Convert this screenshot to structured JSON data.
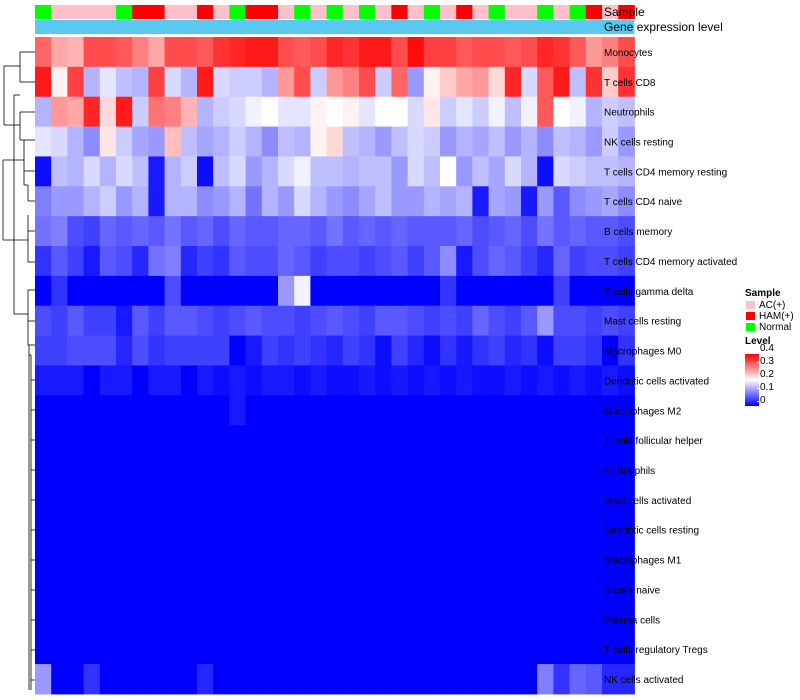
{
  "chart_data": {
    "type": "heatmap",
    "annotation_rows": [
      "Sample",
      "Gene expression level"
    ],
    "gene_expression_bar_color": "#5bc8ef",
    "sample_groups": [
      "AC(+)",
      "HAM(+)",
      "Normal"
    ],
    "sample_colors": {
      "AC(+)": "#ffc0cb",
      "HAM(+)": "#ff0000",
      "Normal": "#00ff00"
    },
    "samples": [
      "Normal",
      "AC(+)",
      "AC(+)",
      "AC(+)",
      "AC(+)",
      "Normal",
      "HAM(+)",
      "HAM(+)",
      "AC(+)",
      "AC(+)",
      "HAM(+)",
      "AC(+)",
      "Normal",
      "HAM(+)",
      "HAM(+)",
      "AC(+)",
      "Normal",
      "AC(+)",
      "Normal",
      "AC(+)",
      "Normal",
      "AC(+)",
      "HAM(+)",
      "AC(+)",
      "Normal",
      "AC(+)",
      "HAM(+)",
      "AC(+)",
      "Normal",
      "AC(+)",
      "AC(+)",
      "Normal",
      "AC(+)",
      "Normal",
      "HAM(+)",
      "AC(+)",
      "HAM(+)"
    ],
    "rows": [
      "Monocytes",
      "T cells CD8",
      "Neutrophils",
      "NK cells resting",
      "T cells CD4 memory resting",
      "T cells CD4 naive",
      "B cells memory",
      "T cells CD4 memory activated",
      "T cells gamma delta",
      "Mast cells resting",
      "Macrophages M0",
      "Dendritic cells activated",
      "Macrophages M2",
      "T cells follicular helper",
      "Eosinophils",
      "Mast cells activated",
      "Dendritic cells resting",
      "Macrophages M1",
      "B cells naive",
      "Plasma cells",
      "T cells regulatory  Tregs",
      "NK cells activated"
    ],
    "values": [
      [
        0.32,
        0.27,
        0.26,
        0.34,
        0.34,
        0.33,
        0.3,
        0.27,
        0.34,
        0.34,
        0.33,
        0.36,
        0.37,
        0.38,
        0.38,
        0.34,
        0.33,
        0.34,
        0.37,
        0.36,
        0.38,
        0.38,
        0.34,
        0.39,
        0.35,
        0.35,
        0.33,
        0.34,
        0.34,
        0.33,
        0.34,
        0.37,
        0.36,
        0.33,
        0.28,
        0.3,
        0.34
      ],
      [
        0.38,
        0.21,
        0.35,
        0.14,
        0.18,
        0.15,
        0.14,
        0.35,
        0.17,
        0.14,
        0.38,
        0.17,
        0.16,
        0.16,
        0.14,
        0.28,
        0.34,
        0.16,
        0.28,
        0.3,
        0.34,
        0.16,
        0.32,
        0.12,
        0.21,
        0.24,
        0.27,
        0.28,
        0.23,
        0.37,
        0.17,
        0.33,
        0.38,
        0.15,
        0.36,
        0.24,
        0.36
      ],
      [
        0.14,
        0.28,
        0.27,
        0.37,
        0.23,
        0.38,
        0.16,
        0.31,
        0.3,
        0.26,
        0.14,
        0.16,
        0.17,
        0.19,
        0.2,
        0.18,
        0.18,
        0.21,
        0.2,
        0.21,
        0.18,
        0.2,
        0.2,
        0.17,
        0.22,
        0.16,
        0.18,
        0.16,
        0.19,
        0.15,
        0.19,
        0.33,
        0.2,
        0.19,
        0.14,
        0.16,
        0.15
      ],
      [
        0.18,
        0.17,
        0.14,
        0.11,
        0.22,
        0.16,
        0.13,
        0.12,
        0.25,
        0.15,
        0.13,
        0.14,
        0.16,
        0.14,
        0.11,
        0.15,
        0.14,
        0.21,
        0.23,
        0.15,
        0.14,
        0.12,
        0.15,
        0.17,
        0.16,
        0.12,
        0.14,
        0.13,
        0.15,
        0.12,
        0.14,
        0.11,
        0.15,
        0.14,
        0.12,
        0.16,
        0.12
      ],
      [
        0.01,
        0.15,
        0.14,
        0.17,
        0.14,
        0.17,
        0.15,
        0.02,
        0.14,
        0.16,
        0.01,
        0.15,
        0.17,
        0.12,
        0.14,
        0.17,
        0.19,
        0.15,
        0.15,
        0.14,
        0.15,
        0.15,
        0.12,
        0.17,
        0.15,
        0.2,
        0.12,
        0.15,
        0.13,
        0.17,
        0.14,
        0.01,
        0.17,
        0.16,
        0.15,
        0.15,
        0.14
      ],
      [
        0.1,
        0.12,
        0.12,
        0.14,
        0.16,
        0.12,
        0.14,
        0.02,
        0.14,
        0.14,
        0.11,
        0.12,
        0.14,
        0.09,
        0.14,
        0.12,
        0.17,
        0.14,
        0.12,
        0.11,
        0.13,
        0.15,
        0.12,
        0.12,
        0.14,
        0.13,
        0.14,
        0.02,
        0.13,
        0.12,
        0.02,
        0.12,
        0.07,
        0.11,
        0.12,
        0.13,
        0.11
      ],
      [
        0.09,
        0.1,
        0.06,
        0.05,
        0.08,
        0.07,
        0.08,
        0.07,
        0.09,
        0.07,
        0.08,
        0.06,
        0.08,
        0.07,
        0.07,
        0.08,
        0.08,
        0.07,
        0.09,
        0.07,
        0.08,
        0.07,
        0.08,
        0.07,
        0.07,
        0.07,
        0.08,
        0.06,
        0.07,
        0.08,
        0.06,
        0.09,
        0.07,
        0.08,
        0.07,
        0.07,
        0.06
      ],
      [
        0.04,
        0.07,
        0.05,
        0.02,
        0.07,
        0.06,
        0.03,
        0.09,
        0.1,
        0.03,
        0.05,
        0.04,
        0.07,
        0.06,
        0.06,
        0.08,
        0.07,
        0.05,
        0.06,
        0.06,
        0.05,
        0.06,
        0.07,
        0.05,
        0.07,
        0.11,
        0.02,
        0.06,
        0.08,
        0.07,
        0.05,
        0.03,
        0.08,
        0.05,
        0.06,
        0.06,
        0.05
      ],
      [
        0.0,
        0.04,
        0.0,
        0.0,
        0.0,
        0.0,
        0.0,
        0.0,
        0.06,
        0.0,
        0.0,
        0.0,
        0.0,
        0.0,
        0.0,
        0.12,
        0.19,
        0.0,
        0.0,
        0.0,
        0.0,
        0.0,
        0.0,
        0.0,
        0.0,
        0.04,
        0.0,
        0.0,
        0.0,
        0.0,
        0.0,
        0.0,
        0.05,
        0.0,
        0.0,
        0.0,
        0.0
      ],
      [
        0.06,
        0.05,
        0.07,
        0.05,
        0.05,
        0.02,
        0.07,
        0.05,
        0.07,
        0.07,
        0.06,
        0.05,
        0.06,
        0.07,
        0.06,
        0.06,
        0.05,
        0.06,
        0.07,
        0.06,
        0.05,
        0.07,
        0.07,
        0.06,
        0.05,
        0.06,
        0.05,
        0.08,
        0.06,
        0.05,
        0.07,
        0.12,
        0.06,
        0.06,
        0.05,
        0.06,
        0.05
      ],
      [
        0.05,
        0.05,
        0.06,
        0.06,
        0.06,
        0.03,
        0.06,
        0.04,
        0.05,
        0.05,
        0.05,
        0.05,
        0.0,
        0.02,
        0.05,
        0.04,
        0.05,
        0.04,
        0.03,
        0.05,
        0.04,
        0.01,
        0.05,
        0.03,
        0.01,
        0.04,
        0.02,
        0.04,
        0.05,
        0.03,
        0.04,
        0.01,
        0.05,
        0.05,
        0.04,
        0.0,
        0.04
      ],
      [
        0.02,
        0.02,
        0.02,
        0.0,
        0.02,
        0.02,
        0.0,
        0.02,
        0.02,
        0.0,
        0.02,
        0.01,
        0.02,
        0.01,
        0.02,
        0.02,
        0.01,
        0.02,
        0.01,
        0.01,
        0.02,
        0.01,
        0.02,
        0.01,
        0.02,
        0.01,
        0.02,
        0.01,
        0.01,
        0.02,
        0.01,
        0.02,
        0.01,
        0.02,
        0.01,
        0.02,
        0.01
      ],
      [
        0.0,
        0.0,
        0.0,
        0.0,
        0.0,
        0.0,
        0.0,
        0.0,
        0.0,
        0.0,
        0.0,
        0.0,
        0.02,
        0.0,
        0.0,
        0.0,
        0.0,
        0.0,
        0.0,
        0.0,
        0.0,
        0.0,
        0.0,
        0.0,
        0.0,
        0.0,
        0.0,
        0.0,
        0.0,
        0.0,
        0.0,
        0.0,
        0.0,
        0.0,
        0.0,
        0.0,
        0.0
      ],
      [
        0.0,
        0.0,
        0.0,
        0.0,
        0.0,
        0.0,
        0.0,
        0.0,
        0.0,
        0.0,
        0.0,
        0.0,
        0.0,
        0.0,
        0.0,
        0.0,
        0.0,
        0.0,
        0.0,
        0.0,
        0.0,
        0.0,
        0.0,
        0.0,
        0.0,
        0.0,
        0.0,
        0.0,
        0.0,
        0.0,
        0.0,
        0.0,
        0.0,
        0.0,
        0.0,
        0.0,
        0.0
      ],
      [
        0.0,
        0.0,
        0.0,
        0.0,
        0.0,
        0.0,
        0.0,
        0.0,
        0.0,
        0.0,
        0.0,
        0.0,
        0.0,
        0.0,
        0.0,
        0.0,
        0.0,
        0.0,
        0.0,
        0.0,
        0.0,
        0.0,
        0.0,
        0.0,
        0.0,
        0.0,
        0.0,
        0.0,
        0.0,
        0.0,
        0.0,
        0.0,
        0.0,
        0.0,
        0.0,
        0.0,
        0.0
      ],
      [
        0.0,
        0.0,
        0.0,
        0.0,
        0.0,
        0.0,
        0.0,
        0.0,
        0.0,
        0.0,
        0.0,
        0.0,
        0.0,
        0.0,
        0.0,
        0.0,
        0.0,
        0.0,
        0.0,
        0.0,
        0.0,
        0.0,
        0.0,
        0.0,
        0.0,
        0.0,
        0.0,
        0.0,
        0.0,
        0.0,
        0.0,
        0.0,
        0.0,
        0.0,
        0.0,
        0.0,
        0.0
      ],
      [
        0.0,
        0.0,
        0.0,
        0.0,
        0.0,
        0.0,
        0.0,
        0.0,
        0.0,
        0.0,
        0.0,
        0.0,
        0.0,
        0.0,
        0.0,
        0.0,
        0.0,
        0.0,
        0.0,
        0.0,
        0.0,
        0.0,
        0.0,
        0.0,
        0.0,
        0.0,
        0.0,
        0.0,
        0.0,
        0.0,
        0.0,
        0.0,
        0.0,
        0.0,
        0.0,
        0.0,
        0.0
      ],
      [
        0.0,
        0.0,
        0.0,
        0.0,
        0.0,
        0.0,
        0.0,
        0.0,
        0.0,
        0.0,
        0.0,
        0.0,
        0.0,
        0.0,
        0.0,
        0.0,
        0.0,
        0.0,
        0.0,
        0.0,
        0.0,
        0.0,
        0.0,
        0.0,
        0.0,
        0.0,
        0.0,
        0.0,
        0.0,
        0.0,
        0.0,
        0.0,
        0.0,
        0.0,
        0.0,
        0.0,
        0.0
      ],
      [
        0.0,
        0.0,
        0.0,
        0.0,
        0.0,
        0.0,
        0.0,
        0.0,
        0.0,
        0.0,
        0.0,
        0.0,
        0.0,
        0.0,
        0.0,
        0.0,
        0.0,
        0.0,
        0.0,
        0.0,
        0.0,
        0.0,
        0.0,
        0.0,
        0.0,
        0.0,
        0.0,
        0.0,
        0.0,
        0.0,
        0.0,
        0.0,
        0.0,
        0.0,
        0.0,
        0.0,
        0.0
      ],
      [
        0.0,
        0.0,
        0.0,
        0.0,
        0.0,
        0.0,
        0.0,
        0.0,
        0.0,
        0.0,
        0.0,
        0.0,
        0.0,
        0.0,
        0.0,
        0.0,
        0.0,
        0.0,
        0.0,
        0.0,
        0.0,
        0.0,
        0.0,
        0.0,
        0.0,
        0.0,
        0.0,
        0.0,
        0.0,
        0.0,
        0.0,
        0.0,
        0.0,
        0.0,
        0.0,
        0.0,
        0.0
      ],
      [
        0.0,
        0.0,
        0.0,
        0.0,
        0.0,
        0.0,
        0.0,
        0.0,
        0.0,
        0.0,
        0.0,
        0.0,
        0.0,
        0.0,
        0.0,
        0.0,
        0.0,
        0.0,
        0.0,
        0.0,
        0.0,
        0.0,
        0.0,
        0.0,
        0.0,
        0.0,
        0.0,
        0.0,
        0.0,
        0.0,
        0.0,
        0.0,
        0.0,
        0.0,
        0.0,
        0.0,
        0.0
      ],
      [
        0.12,
        0.0,
        0.0,
        0.04,
        0.0,
        0.0,
        0.0,
        0.0,
        0.0,
        0.0,
        0.03,
        0.0,
        0.0,
        0.0,
        0.0,
        0.0,
        0.0,
        0.0,
        0.0,
        0.0,
        0.0,
        0.0,
        0.0,
        0.0,
        0.0,
        0.0,
        0.0,
        0.0,
        0.0,
        0.0,
        0.0,
        0.1,
        0.04,
        0.08,
        0.07,
        0.03,
        0.03
      ]
    ],
    "legend": {
      "sample_title": "Sample",
      "sample_entries": [
        "AC(+)",
        "HAM(+)",
        "Normal"
      ],
      "level_title": "Level",
      "level_ticks": [
        "0.4",
        "0.3",
        "0.2",
        "0.1",
        "0"
      ],
      "color_scale": {
        "low": "#0000ff",
        "mid": "#ffffff",
        "high": "#ff0000",
        "min": 0,
        "max": 0.4
      }
    }
  }
}
